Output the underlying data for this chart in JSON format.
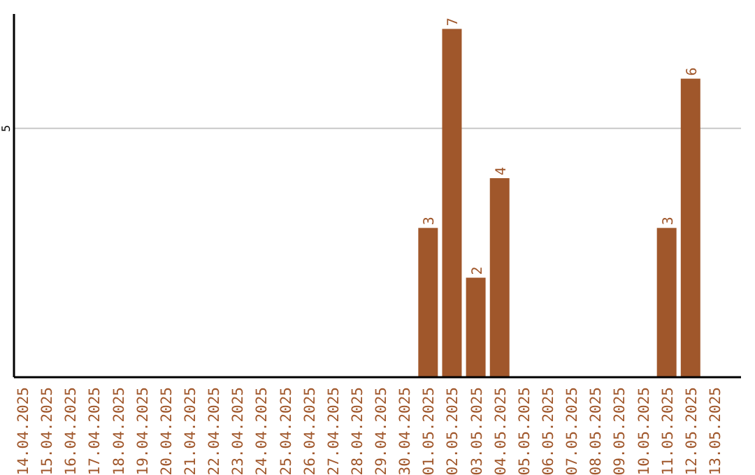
{
  "chart_data": {
    "type": "bar",
    "categories": [
      "14.04.2025",
      "15.04.2025",
      "16.04.2025",
      "17.04.2025",
      "18.04.2025",
      "19.04.2025",
      "20.04.2025",
      "21.04.2025",
      "22.04.2025",
      "23.04.2025",
      "24.04.2025",
      "25.04.2025",
      "26.04.2025",
      "27.04.2025",
      "28.04.2025",
      "29.04.2025",
      "30.04.2025",
      "01.05.2025",
      "02.05.2025",
      "03.05.2025",
      "04.05.2025",
      "05.05.2025",
      "06.05.2025",
      "07.05.2025",
      "08.05.2025",
      "09.05.2025",
      "10.05.2025",
      "11.05.2025",
      "12.05.2025",
      "13.05.2025"
    ],
    "values": [
      null,
      null,
      null,
      null,
      null,
      null,
      null,
      null,
      null,
      null,
      null,
      null,
      null,
      null,
      null,
      null,
      null,
      3,
      7,
      2,
      4,
      null,
      null,
      null,
      null,
      null,
      null,
      3,
      6,
      null
    ],
    "color": "#a0572b",
    "ylim": [
      0,
      7.3
    ],
    "yticks": [
      5
    ],
    "grid": "y",
    "data_labels": true
  }
}
